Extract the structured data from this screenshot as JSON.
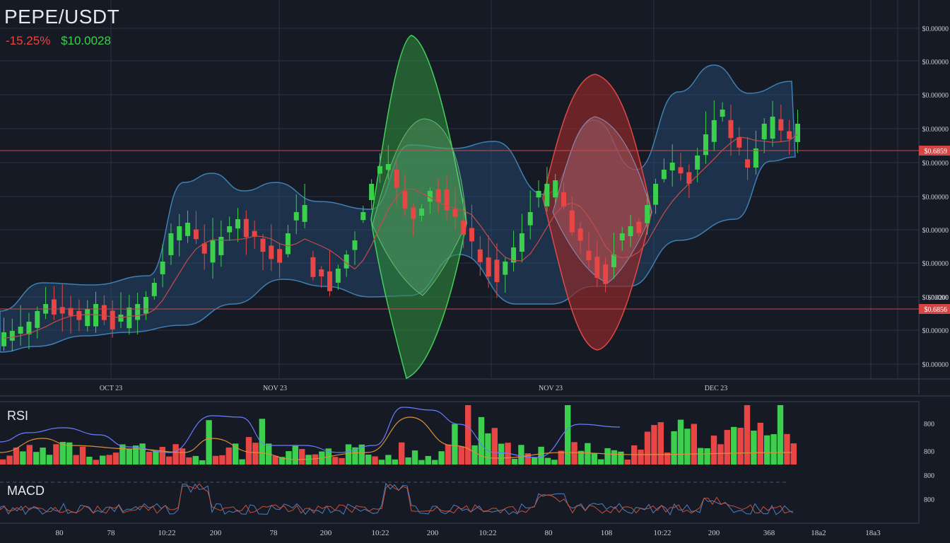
{
  "header": {
    "pair": "PEPE/USDT",
    "change": "-15.25%",
    "price": "$10.0028"
  },
  "colors": {
    "background": "#151a24",
    "grid": "#2a3140",
    "up": "#3ccf4e",
    "down": "#e84545",
    "band_fill": "#27507a",
    "band_stroke": "#3f7fb3",
    "green_shape": "#2e8b3a",
    "red_shape": "#8f2a2a",
    "price_line": "#c64b4b",
    "price_tag": "#d64545"
  },
  "price_axis": {
    "labels": [
      "$0.00000",
      "$0.00000",
      "$0.00000",
      "$0.00000",
      "$0.00000",
      "$0.00000",
      "$0.00000",
      "$0.00000",
      "$0.00000",
      "$0.00000",
      "$0.00000",
      "$0.00000"
    ],
    "tag_upper": "$0.6859",
    "tag_lower": "$0.6856",
    "tag_lower_small": "$0.0200"
  },
  "time_axis": {
    "labels": [
      "OCT 23",
      "NOV 23",
      "NOV 23",
      "DEC 23"
    ]
  },
  "panels": {
    "rsi_label": "RSI",
    "macd_label": "MACD",
    "right_labels": [
      "800",
      "800",
      "800",
      "800",
      "80"
    ]
  },
  "bottom_axis": {
    "labels": [
      "80",
      "78",
      "10:22",
      "200",
      "78",
      "200",
      "10:22",
      "200",
      "10:22",
      "80",
      "108",
      "10:22",
      "200",
      "368",
      "18a2",
      "18a3"
    ]
  }
}
